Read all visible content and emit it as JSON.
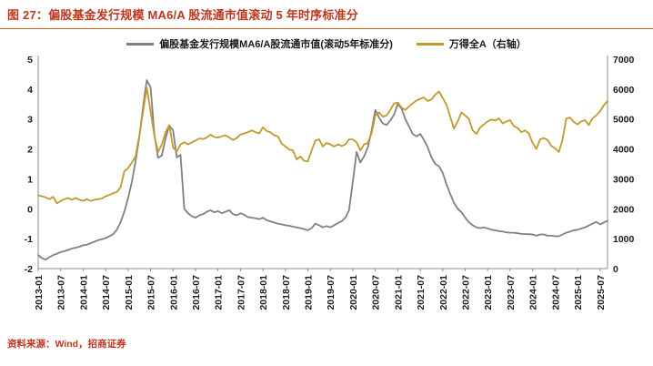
{
  "header": {
    "title": "图 27：偏股基金发行规模 MA6/A 股流通市值滚动 5 年时序标准分"
  },
  "source": {
    "text": "资料来源：Wind，招商证券"
  },
  "colors": {
    "title_text": "#BE3620",
    "title_rule": "#D2601E",
    "source_text": "#BE3620",
    "axis_line": "#8c8c8c",
    "gray_series": "#808080",
    "gold_series": "#C09A2B"
  },
  "chart_data": {
    "type": "line",
    "title": "偏股基金发行规模 MA6/A 股流通市值滚动 5 年时序标准分",
    "x_monthly_start": "2013-01",
    "tick_every": 6,
    "x_tick_labels": [
      "2013-01",
      "2013-07",
      "2014-01",
      "2014-07",
      "2015-01",
      "2015-07",
      "2016-01",
      "2016-07",
      "2017-01",
      "2017-07",
      "2018-01",
      "2018-07",
      "2019-01",
      "2019-07",
      "2020-01",
      "2020-07",
      "2021-01",
      "2021-07",
      "2022-01",
      "2022-07",
      "2023-01",
      "2023-07",
      "2024-01",
      "2024-07",
      "2025-01",
      "2025-07"
    ],
    "left_axis": {
      "min": -2,
      "max": 5,
      "ticks": [
        5,
        4,
        3,
        2,
        1,
        0,
        -1,
        -2
      ]
    },
    "right_axis": {
      "min": 0,
      "max": 7000,
      "ticks": [
        7000,
        6000,
        5000,
        4000,
        3000,
        2000,
        1000,
        0
      ]
    },
    "legend_position": "top",
    "grid": false,
    "series": [
      {
        "name": "偏股基金发行规模MA6/A股流通市值(滚动5年标准分)",
        "axis": "left",
        "color": "#808080",
        "values": [
          -1.55,
          -1.65,
          -1.7,
          -1.62,
          -1.55,
          -1.5,
          -1.45,
          -1.42,
          -1.38,
          -1.33,
          -1.3,
          -1.27,
          -1.22,
          -1.2,
          -1.15,
          -1.1,
          -1.05,
          -1.02,
          -0.98,
          -0.92,
          -0.85,
          -0.7,
          -0.45,
          -0.1,
          0.35,
          0.9,
          1.6,
          2.4,
          3.4,
          4.3,
          4.05,
          2.5,
          1.7,
          1.78,
          2.35,
          2.78,
          2.62,
          1.72,
          1.8,
          0.0,
          -0.15,
          -0.25,
          -0.3,
          -0.22,
          -0.18,
          -0.1,
          -0.05,
          -0.12,
          -0.08,
          -0.15,
          -0.1,
          -0.05,
          -0.18,
          -0.22,
          -0.15,
          -0.2,
          -0.28,
          -0.3,
          -0.32,
          -0.35,
          -0.3,
          -0.38,
          -0.42,
          -0.46,
          -0.5,
          -0.52,
          -0.55,
          -0.57,
          -0.6,
          -0.62,
          -0.65,
          -0.68,
          -0.72,
          -0.65,
          -0.5,
          -0.55,
          -0.62,
          -0.58,
          -0.62,
          -0.55,
          -0.48,
          -0.42,
          -0.3,
          -0.05,
          0.9,
          1.9,
          1.55,
          1.75,
          2.05,
          2.6,
          3.3,
          3.05,
          2.85,
          2.8,
          2.95,
          3.15,
          3.5,
          3.35,
          3.0,
          2.75,
          2.5,
          2.42,
          2.5,
          2.3,
          2.05,
          1.72,
          1.5,
          1.42,
          1.2,
          0.82,
          0.5,
          0.2,
          0.0,
          -0.12,
          -0.3,
          -0.45,
          -0.55,
          -0.62,
          -0.65,
          -0.62,
          -0.66,
          -0.7,
          -0.72,
          -0.75,
          -0.76,
          -0.79,
          -0.8,
          -0.8,
          -0.82,
          -0.84,
          -0.85,
          -0.85,
          -0.86,
          -0.9,
          -0.86,
          -0.86,
          -0.9,
          -0.9,
          -0.92,
          -0.92,
          -0.86,
          -0.8,
          -0.76,
          -0.72,
          -0.7,
          -0.66,
          -0.62,
          -0.56,
          -0.5,
          -0.44,
          -0.52,
          -0.46,
          -0.4
        ]
      },
      {
        "name": "万得全A（右轴）",
        "axis": "right",
        "color": "#C09A2B",
        "values": [
          2450,
          2420,
          2380,
          2320,
          2400,
          2180,
          2260,
          2320,
          2360,
          2300,
          2360,
          2300,
          2260,
          2320,
          2260,
          2300,
          2320,
          2340,
          2420,
          2460,
          2520,
          2560,
          2720,
          3250,
          3350,
          3550,
          3750,
          4450,
          5250,
          6050,
          5250,
          4450,
          3900,
          4150,
          4550,
          4800,
          4050,
          3920,
          4150,
          4220,
          4150,
          4220,
          4280,
          4350,
          4330,
          4380,
          4480,
          4400,
          4380,
          4420,
          4460,
          4380,
          4300,
          4360,
          4480,
          4520,
          4560,
          4620,
          4560,
          4520,
          4720,
          4600,
          4560,
          4460,
          4420,
          4180,
          4080,
          3980,
          3950,
          3650,
          3750,
          3600,
          3580,
          3950,
          4280,
          4320,
          4080,
          4200,
          4150,
          4080,
          4150,
          4100,
          4150,
          4320,
          4320,
          4220,
          3950,
          4150,
          4200,
          4520,
          5120,
          5220,
          5080,
          5120,
          5300,
          5520,
          5550,
          5380,
          5300,
          5420,
          5520,
          5620,
          5680,
          5720,
          5600,
          5650,
          5820,
          5920,
          5700,
          5480,
          5080,
          4680,
          4920,
          5220,
          5120,
          5000,
          4620,
          4500,
          4720,
          4820,
          4920,
          4980,
          4950,
          5020,
          4850,
          4920,
          4960,
          4760,
          4700,
          4560,
          4620,
          4520,
          4200,
          4000,
          4320,
          4360,
          4300,
          4100,
          4020,
          3900,
          4320,
          5020,
          5050,
          4900,
          4820,
          4920,
          4960,
          4800,
          5020,
          5120,
          5260,
          5460,
          5600
        ]
      }
    ]
  }
}
